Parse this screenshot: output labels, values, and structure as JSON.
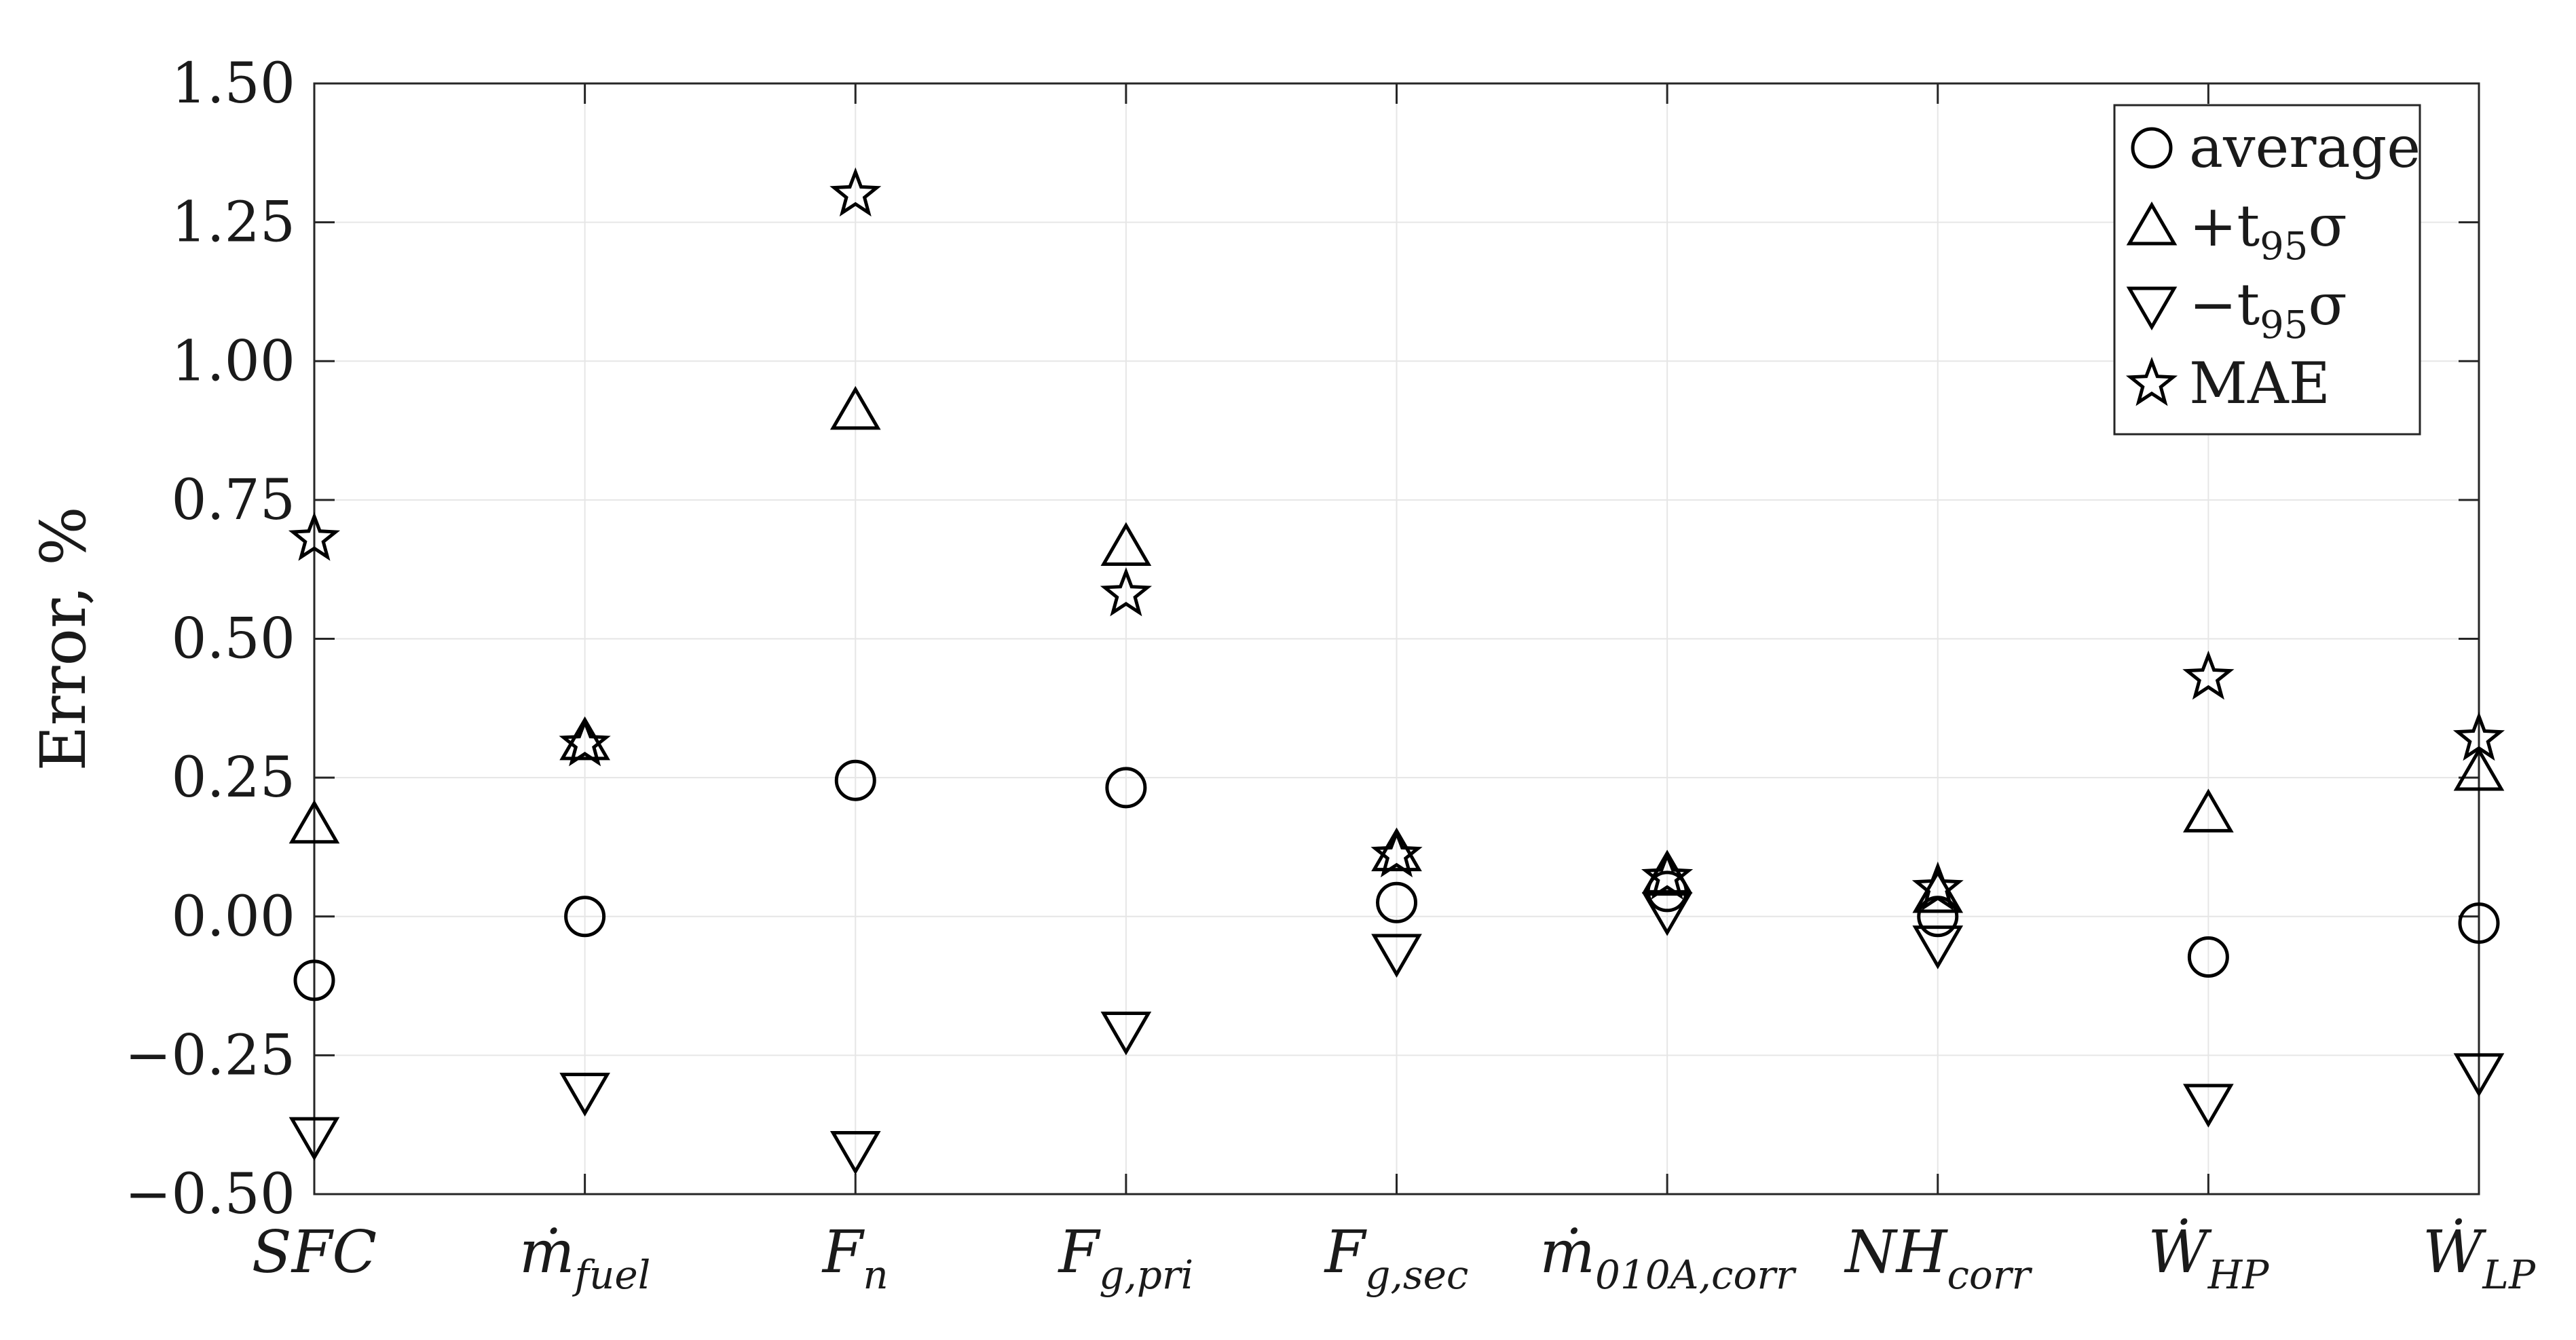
{
  "chart_data": {
    "type": "scatter",
    "categories": [
      "SFC",
      "ṁ_fuel",
      "F_n",
      "F_g,pri",
      "F_g,sec",
      "ṁ_010A,corr",
      "NH_corr",
      "Ẇ_HP",
      "Ẇ_LP"
    ],
    "category_labels": [
      {
        "base": "SFC",
        "sub": ""
      },
      {
        "base": "ṁ",
        "sub": "fuel"
      },
      {
        "base": "F",
        "sub": "n"
      },
      {
        "base": "F",
        "sub": "g,pri"
      },
      {
        "base": "F",
        "sub": "g,sec"
      },
      {
        "base": "ṁ",
        "sub": "010A,corr"
      },
      {
        "base": "NH",
        "sub": "corr"
      },
      {
        "base": "Ẇ",
        "sub": "HP"
      },
      {
        "base": "Ẇ",
        "sub": "LP"
      }
    ],
    "series": [
      {
        "name": "average",
        "marker": "circle",
        "values": [
          -0.115,
          0.0,
          0.245,
          0.232,
          0.025,
          0.045,
          0.0,
          -0.073,
          -0.012
        ]
      },
      {
        "name": "+t95σ",
        "marker": "triangle-up",
        "values": [
          0.165,
          0.315,
          0.91,
          0.665,
          0.115,
          0.075,
          0.04,
          0.185,
          0.26
        ]
      },
      {
        "name": "−t95σ",
        "marker": "triangle-down",
        "values": [
          -0.395,
          -0.315,
          -0.42,
          -0.205,
          -0.065,
          0.01,
          -0.05,
          -0.335,
          -0.28
        ]
      },
      {
        "name": "MAE",
        "marker": "star",
        "values": [
          0.68,
          0.31,
          1.3,
          0.58,
          0.11,
          0.07,
          0.05,
          0.43,
          0.32
        ]
      }
    ],
    "xlabel": "",
    "ylabel": "Error, %",
    "ylim": [
      -0.5,
      1.5
    ],
    "yticks": [
      "−0.50",
      "−0.25",
      "0.00",
      "0.25",
      "0.50",
      "0.75",
      "1.00",
      "1.25",
      "1.50"
    ],
    "ytick_values": [
      -0.5,
      -0.25,
      0.0,
      0.25,
      0.5,
      0.75,
      1.0,
      1.25,
      1.5
    ],
    "grid": true,
    "legend_position": "top-right",
    "legend": [
      {
        "label": "average",
        "base": "average",
        "sub": "",
        "marker": "circle"
      },
      {
        "label": "+t95σ",
        "base": "+t",
        "sub": "95",
        "tail": "σ",
        "marker": "triangle-up"
      },
      {
        "label": "−t95σ",
        "base": "−t",
        "sub": "95",
        "tail": "σ",
        "marker": "triangle-down"
      },
      {
        "label": "MAE",
        "base": "MAE",
        "sub": "",
        "marker": "star"
      }
    ],
    "marker_color": "#000000"
  }
}
